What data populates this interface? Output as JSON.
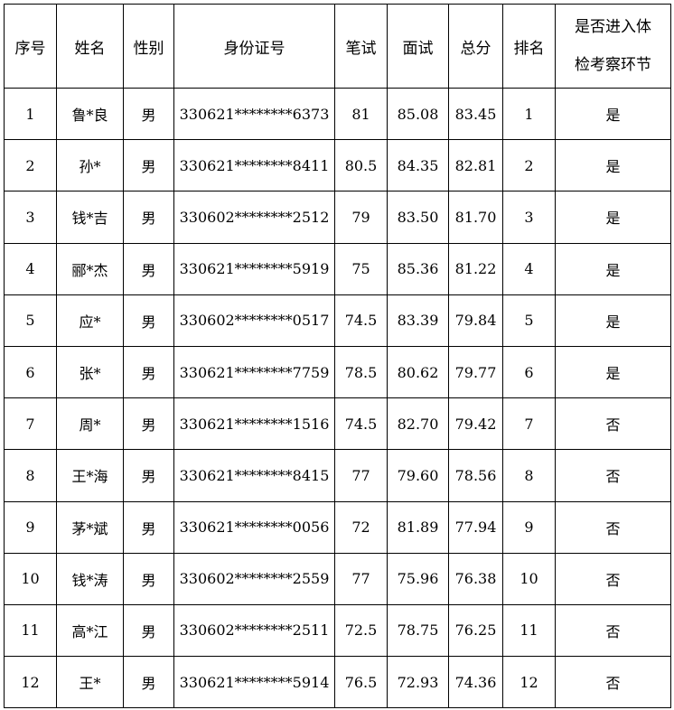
{
  "table": {
    "header": [
      "序号",
      "姓名",
      "性别",
      "身份证号",
      "笔试",
      "面试",
      "总分",
      "排名",
      "是否进入体检考察环节"
    ],
    "rows": [
      [
        "1",
        "鲁*良",
        "男",
        "330621********6373",
        "81",
        "85.08",
        "83.45",
        "1",
        "是"
      ],
      [
        "2",
        "孙*",
        "男",
        "330621********8411",
        "80.5",
        "84.35",
        "82.81",
        "2",
        "是"
      ],
      [
        "3",
        "钱*吉",
        "男",
        "330602********2512",
        "79",
        "83.50",
        "81.70",
        "3",
        "是"
      ],
      [
        "4",
        "郦*杰",
        "男",
        "330621********5919",
        "75",
        "85.36",
        "81.22",
        "4",
        "是"
      ],
      [
        "5",
        "应*",
        "男",
        "330602********0517",
        "74.5",
        "83.39",
        "79.84",
        "5",
        "是"
      ],
      [
        "6",
        "张*",
        "男",
        "330621********7759",
        "78.5",
        "80.62",
        "79.77",
        "6",
        "是"
      ],
      [
        "7",
        "周*",
        "男",
        "330621********1516",
        "74.5",
        "82.70",
        "79.42",
        "7",
        "否"
      ],
      [
        "8",
        "王*海",
        "男",
        "330621********8415",
        "77",
        "79.60",
        "78.56",
        "8",
        "否"
      ],
      [
        "9",
        "茅*斌",
        "男",
        "330621********0056",
        "72",
        "81.89",
        "77.94",
        "9",
        "否"
      ],
      [
        "10",
        "钱*涛",
        "男",
        "330602********2559",
        "77",
        "75.96",
        "76.38",
        "10",
        "否"
      ],
      [
        "11",
        "高*江",
        "男",
        "330602********2511",
        "72.5",
        "78.75",
        "76.25",
        "11",
        "否"
      ],
      [
        "12",
        "王*",
        "男",
        "330621********5914",
        "76.5",
        "72.93",
        "74.36",
        "12",
        "否"
      ]
    ]
  }
}
